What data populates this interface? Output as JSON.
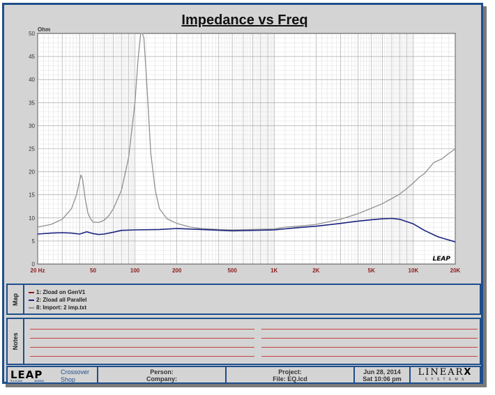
{
  "chart_data": {
    "type": "line",
    "title": "Impedance vs Freq",
    "ylabel": "Ohm",
    "xscale": "log",
    "xlim": [
      20,
      20000
    ],
    "ylim": [
      0,
      50
    ],
    "grid": true,
    "x_tick_labels": [
      "20 Hz",
      "50",
      "100",
      "200",
      "500",
      "1K",
      "2K",
      "5K",
      "10K",
      "20K"
    ],
    "x_tick_values": [
      20,
      50,
      100,
      200,
      500,
      1000,
      2000,
      5000,
      10000,
      20000
    ],
    "y_ticks": [
      0,
      5,
      10,
      15,
      20,
      25,
      30,
      35,
      40,
      45,
      50
    ],
    "series": [
      {
        "name": "1: Zload on GenV1",
        "color": "#8b1a1a",
        "x": [],
        "y": []
      },
      {
        "name": "2: Zload all Parallel",
        "color": "#1a237e",
        "x": [
          20,
          25,
          30,
          35,
          40,
          45,
          50,
          55,
          60,
          70,
          80,
          100,
          150,
          200,
          300,
          500,
          1000,
          1500,
          2000,
          3000,
          4000,
          5000,
          6000,
          7000,
          8000,
          10000,
          12000,
          15000,
          20000
        ],
        "y": [
          6.5,
          6.7,
          6.8,
          6.7,
          6.5,
          7.0,
          6.6,
          6.4,
          6.5,
          6.9,
          7.3,
          7.4,
          7.5,
          7.7,
          7.5,
          7.2,
          7.4,
          7.9,
          8.2,
          8.8,
          9.3,
          9.6,
          9.8,
          9.9,
          9.7,
          8.7,
          7.3,
          5.9,
          4.8
        ]
      },
      {
        "name": "8: Import: 2 imp.txt",
        "color": "#909090",
        "x": [
          20,
          25,
          30,
          35,
          38,
          40,
          41,
          42,
          44,
          46,
          48,
          50,
          55,
          60,
          65,
          70,
          80,
          90,
          100,
          105,
          110,
          113,
          116,
          120,
          125,
          130,
          140,
          150,
          170,
          200,
          250,
          300,
          400,
          500,
          700,
          1000,
          1200,
          1500,
          2000,
          3000,
          4000,
          5000,
          6000,
          7000,
          8000,
          9000,
          10000,
          11000,
          12000,
          14000,
          16000,
          18000,
          20000
        ],
        "y": [
          8.0,
          8.6,
          9.7,
          12.0,
          15.0,
          18.0,
          19.3,
          18.5,
          14.0,
          11.0,
          9.8,
          9.1,
          9.0,
          9.5,
          10.5,
          12.0,
          16.0,
          23.0,
          35.0,
          44.0,
          50.0,
          50.0,
          49.0,
          42.0,
          33.0,
          24.0,
          16.0,
          12.0,
          9.8,
          8.8,
          8.0,
          7.7,
          7.5,
          7.4,
          7.5,
          7.6,
          8.0,
          8.2,
          8.6,
          9.7,
          10.9,
          12.1,
          13.1,
          14.2,
          15.2,
          16.4,
          17.6,
          18.8,
          19.6,
          22.0,
          22.8,
          24.0,
          25.0
        ]
      }
    ]
  },
  "watermark": "LEAP",
  "map_panel": {
    "label": "Map",
    "items": [
      "1: Zload on GenV1",
      "2: Zload all Parallel",
      "8: Import: 2 imp.txt"
    ]
  },
  "notes_panel": {
    "label": "Notes"
  },
  "footer": {
    "app_logo": "LEAP",
    "app_version": "5.1.0.224",
    "app_date": "10/2011",
    "module": "Crossover",
    "module2": "Shop",
    "person": "Person:",
    "company": "Company:",
    "project": "Project:",
    "file": "File: EQ.lcd",
    "date": "Jun 28, 2014",
    "time": "Sat 10:06 pm",
    "brand": "LINEAR",
    "brand_x": "X",
    "brand_sub": "S Y S T E M S"
  }
}
